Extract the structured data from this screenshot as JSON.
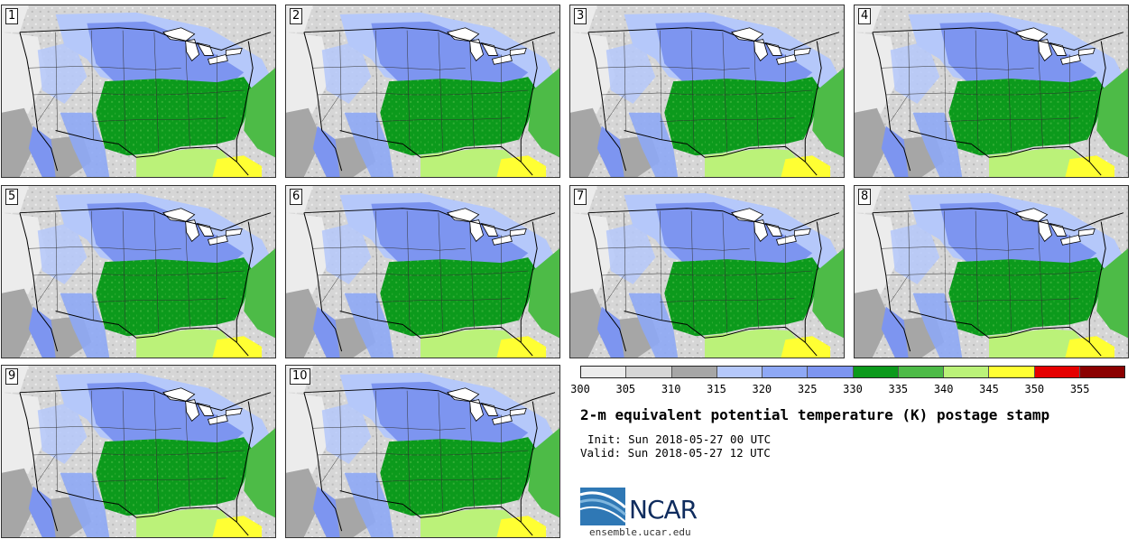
{
  "panels": [
    {
      "label": "1"
    },
    {
      "label": "2"
    },
    {
      "label": "3"
    },
    {
      "label": "4"
    },
    {
      "label": "5"
    },
    {
      "label": "6"
    },
    {
      "label": "7"
    },
    {
      "label": "8"
    },
    {
      "label": "9"
    },
    {
      "label": "10"
    }
  ],
  "colorbar": {
    "colors": [
      "#ececec",
      "#d6d6d6",
      "#a6a6a6",
      "#b5c8fa",
      "#8ea8f5",
      "#7d95f0",
      "#0c9a1c",
      "#4dbb47",
      "#bbf279",
      "#ffff33",
      "#e50000",
      "#8b0000"
    ],
    "ticks": [
      "300",
      "305",
      "310",
      "315",
      "320",
      "325",
      "330",
      "335",
      "340",
      "345",
      "350",
      "355"
    ]
  },
  "title": "2-m equivalent potential temperature (K) postage stamp",
  "init": "Init: Sun 2018-05-27 00 UTC",
  "valid": "Valid: Sun 2018-05-27 12 UTC",
  "logo": {
    "text": "NCAR",
    "colors": {
      "dark": "#0f2c5e",
      "mid": "#2f78b5",
      "light": "#7fb6de"
    }
  },
  "site": "ensemble.ucar.edu"
}
